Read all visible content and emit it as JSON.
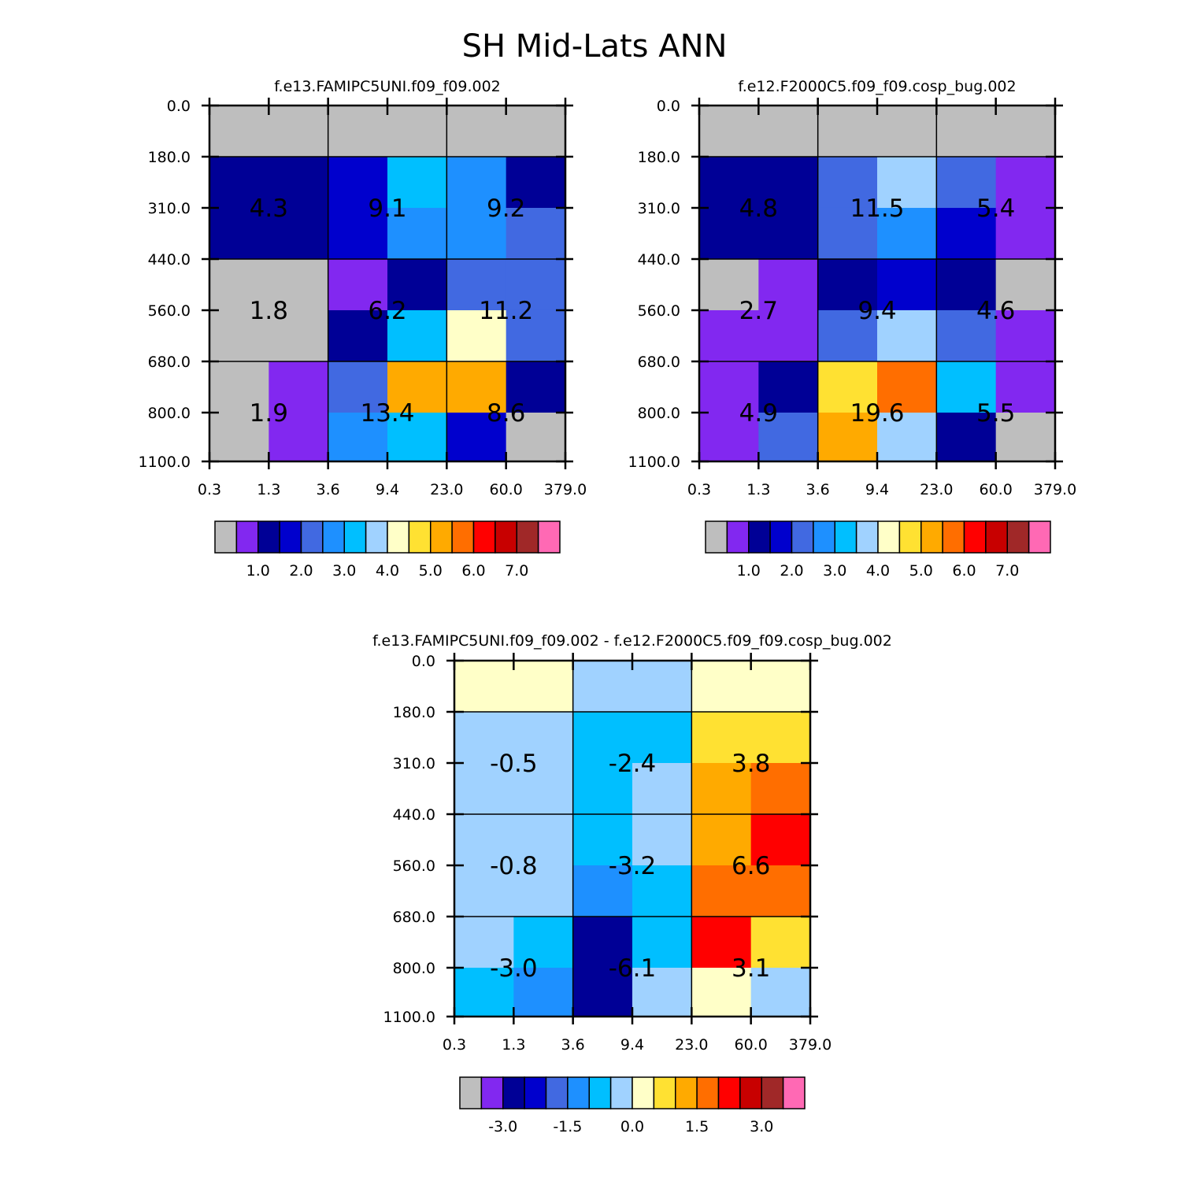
{
  "chart_data": {
    "type": "heatmap",
    "title": "SH Mid-Lats ANN",
    "xlabel": "",
    "ylabel": "",
    "x_ticks": [
      "0.3",
      "1.3",
      "3.6",
      "9.4",
      "23.0",
      "60.0",
      "379.0"
    ],
    "y_ticks": [
      "0.0",
      "180.0",
      "310.0",
      "440.0",
      "560.0",
      "680.0",
      "800.0",
      "1100.0"
    ],
    "cell_note": "Each panel is a 6 (tau bins) x 7 (pressure bins) grid of colour indices; rows run from pressure 0.0 (top) to 1100.0 (bottom). Grey (index 0) marks the lowest bin / missing.",
    "colors": [
      "#bebebe",
      "#8228f0",
      "#000096",
      "#0000cd",
      "#4169e1",
      "#1e90ff",
      "#00bfff",
      "#a0d2ff",
      "#ffffc8",
      "#ffe132",
      "#ffaa00",
      "#ff6e00",
      "#ff0000",
      "#c80000",
      "#a02828",
      "#ff69b4"
    ],
    "panels": [
      {
        "title": "f.e13.FAMIPC5UNI.f09_f09.002",
        "cells": [
          [
            0,
            0,
            0,
            0,
            0,
            0
          ],
          [
            2,
            2,
            3,
            6,
            5,
            2
          ],
          [
            2,
            2,
            3,
            5,
            5,
            4
          ],
          [
            0,
            0,
            1,
            2,
            4,
            4
          ],
          [
            0,
            0,
            2,
            6,
            8,
            4
          ],
          [
            0,
            1,
            4,
            10,
            10,
            2
          ],
          [
            0,
            1,
            5,
            6,
            3,
            0
          ]
        ],
        "box_labels": [
          [
            "4.3",
            "9.1",
            "9.2"
          ],
          [
            "1.8",
            "6.2",
            "11.2"
          ],
          [
            "1.9",
            "13.4",
            "8.6"
          ]
        ]
      },
      {
        "title": "f.e12.F2000C5.f09_f09.cosp_bug.002",
        "cells": [
          [
            0,
            0,
            0,
            0,
            0,
            0
          ],
          [
            2,
            2,
            4,
            7,
            4,
            1
          ],
          [
            2,
            2,
            4,
            5,
            3,
            1
          ],
          [
            0,
            1,
            2,
            3,
            2,
            0
          ],
          [
            1,
            1,
            4,
            7,
            4,
            1
          ],
          [
            1,
            2,
            9,
            11,
            6,
            1
          ],
          [
            1,
            4,
            10,
            7,
            2,
            0
          ]
        ],
        "box_labels": [
          [
            "4.8",
            "11.5",
            "5.4"
          ],
          [
            "2.7",
            "9.4",
            "4.6"
          ],
          [
            "4.9",
            "19.6",
            "5.5"
          ]
        ]
      },
      {
        "title": "f.e13.FAMIPC5UNI.f09_f09.002 - f.e12.F2000C5.f09_f09.cosp_bug.002",
        "cells": [
          [
            8,
            8,
            7,
            7,
            8,
            8
          ],
          [
            7,
            7,
            6,
            6,
            9,
            9
          ],
          [
            7,
            7,
            6,
            7,
            10,
            11
          ],
          [
            7,
            7,
            6,
            7,
            10,
            12
          ],
          [
            7,
            7,
            5,
            6,
            11,
            11
          ],
          [
            7,
            6,
            2,
            6,
            12,
            9
          ],
          [
            6,
            5,
            2,
            7,
            8,
            7
          ]
        ],
        "box_labels": [
          [
            "-0.5",
            "-2.4",
            "3.8"
          ],
          [
            "-0.8",
            "-3.2",
            "6.6"
          ],
          [
            "-3.0",
            "-6.1",
            "3.1"
          ]
        ]
      }
    ],
    "colorbars": [
      {
        "labels": [
          "1.0",
          "2.0",
          "3.0",
          "4.0",
          "5.0",
          "6.0",
          "7.0"
        ]
      },
      {
        "labels": [
          "1.0",
          "2.0",
          "3.0",
          "4.0",
          "5.0",
          "6.0",
          "7.0"
        ]
      },
      {
        "labels": [
          "-3.0",
          "-1.5",
          "0.0",
          "1.5",
          "3.0"
        ]
      }
    ]
  }
}
